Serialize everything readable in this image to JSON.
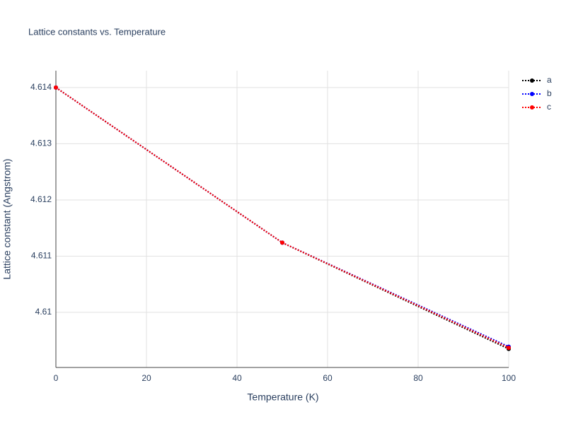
{
  "chart_data": {
    "type": "line",
    "title": "Lattice constants vs. Temperature",
    "x_label": "Temperature (K)",
    "y_label": "Lattice constant (Angstrom)",
    "x": [
      0,
      50,
      100
    ],
    "series": [
      {
        "name": "a",
        "color": "#000000",
        "values": [
          4.614,
          4.61124,
          4.60935
        ]
      },
      {
        "name": "b",
        "color": "#0000ff",
        "values": [
          4.614,
          4.61124,
          4.60939
        ]
      },
      {
        "name": "c",
        "color": "#ff0000",
        "values": [
          4.614,
          4.61124,
          4.60937
        ]
      }
    ],
    "xlim": [
      0,
      100
    ],
    "xticks": [
      0,
      20,
      40,
      60,
      80,
      100
    ],
    "ylim": [
      4.60902,
      4.6143
    ],
    "yticks": [
      4.61,
      4.611,
      4.612,
      4.613,
      4.614
    ],
    "grid": true,
    "legend": "top-right"
  }
}
